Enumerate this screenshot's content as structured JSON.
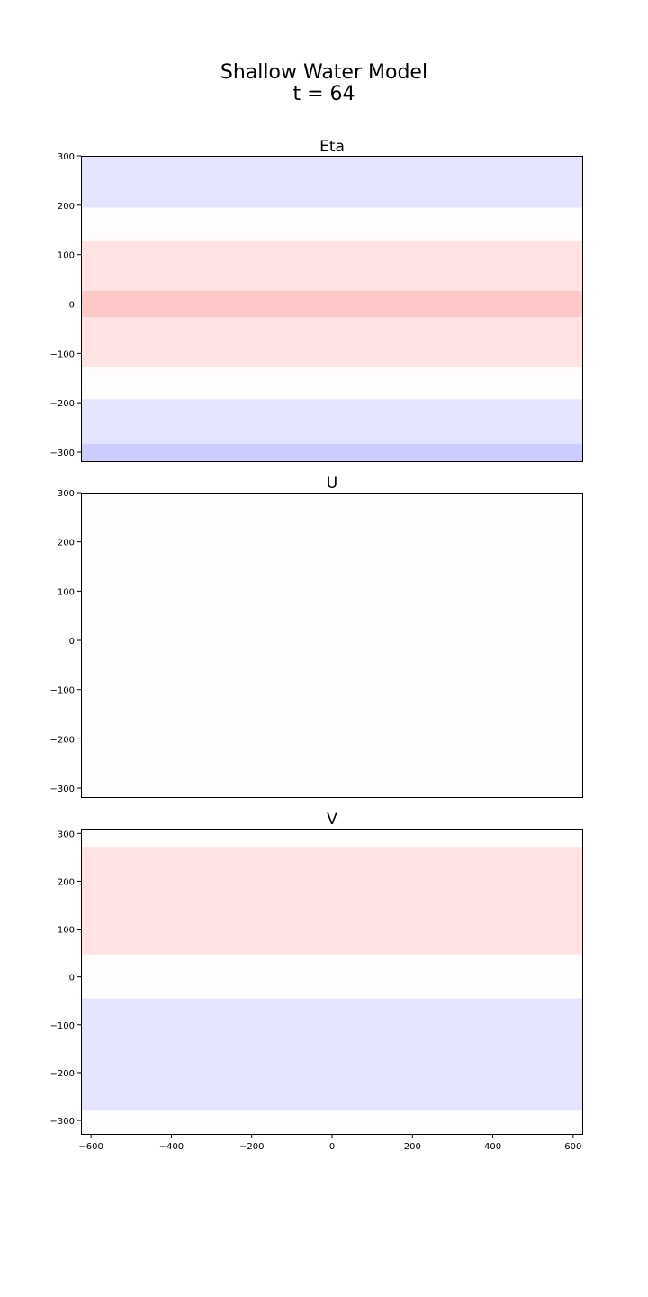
{
  "figure": {
    "title_line1": "Shallow Water Model",
    "title_line2": "t = 64"
  },
  "colors": {
    "strong_blue": "#ccccff",
    "light_blue": "#e4e4ff",
    "near_white": "#fffcfc",
    "light_red": "#ffe2e2",
    "strong_red": "#ffc8c8"
  },
  "chart_data": [
    {
      "type": "heatmap",
      "title": "Eta",
      "xlim": [
        -625,
        625
      ],
      "ylim": [
        -320,
        300
      ],
      "yticks": [
        300,
        200,
        100,
        0,
        -100,
        -200,
        -300
      ],
      "yticklabels": [
        "300",
        "200",
        "100",
        "0",
        "−100",
        "−200",
        "−300"
      ],
      "xticks_visible": false,
      "bands": [
        {
          "y0": 195,
          "y1": 300,
          "color": "#e4e4ff"
        },
        {
          "y0": 127,
          "y1": 195,
          "color": "#fffcfc"
        },
        {
          "y0": 27,
          "y1": 127,
          "color": "#ffe2e2"
        },
        {
          "y0": -27,
          "y1": 27,
          "color": "#ffc8c8"
        },
        {
          "y0": -127,
          "y1": -27,
          "color": "#ffe2e2"
        },
        {
          "y0": -193,
          "y1": -127,
          "color": "#fffcfc"
        },
        {
          "y0": -283,
          "y1": -193,
          "color": "#e4e4ff"
        },
        {
          "y0": -320,
          "y1": -283,
          "color": "#ccccff"
        }
      ]
    },
    {
      "type": "heatmap",
      "title": "U",
      "xlim": [
        -625,
        625
      ],
      "ylim": [
        -320,
        300
      ],
      "yticks": [
        300,
        200,
        100,
        0,
        -100,
        -200,
        -300
      ],
      "yticklabels": [
        "300",
        "200",
        "100",
        "0",
        "−100",
        "−200",
        "−300"
      ],
      "xticks_visible": false,
      "bands": [
        {
          "y0": -320,
          "y1": 300,
          "color": "#fffcfc"
        }
      ]
    },
    {
      "type": "heatmap",
      "title": "V",
      "xlim": [
        -625,
        625
      ],
      "ylim": [
        -330,
        310
      ],
      "yticks": [
        300,
        200,
        100,
        0,
        -100,
        -200,
        -300
      ],
      "yticklabels": [
        "300",
        "200",
        "100",
        "0",
        "−100",
        "−200",
        "−300"
      ],
      "xticks": [
        -600,
        -400,
        -200,
        0,
        200,
        400,
        600
      ],
      "xticklabels": [
        "−600",
        "−400",
        "−200",
        "0",
        "200",
        "400",
        "600"
      ],
      "xticks_visible": true,
      "bands": [
        {
          "y0": 272,
          "y1": 310,
          "color": "#fffcfc"
        },
        {
          "y0": 47,
          "y1": 272,
          "color": "#ffe2e2"
        },
        {
          "y0": -45,
          "y1": 47,
          "color": "#fffcfc"
        },
        {
          "y0": -278,
          "y1": -45,
          "color": "#e4e4ff"
        },
        {
          "y0": -330,
          "y1": -278,
          "color": "#fffcfc"
        }
      ]
    }
  ]
}
